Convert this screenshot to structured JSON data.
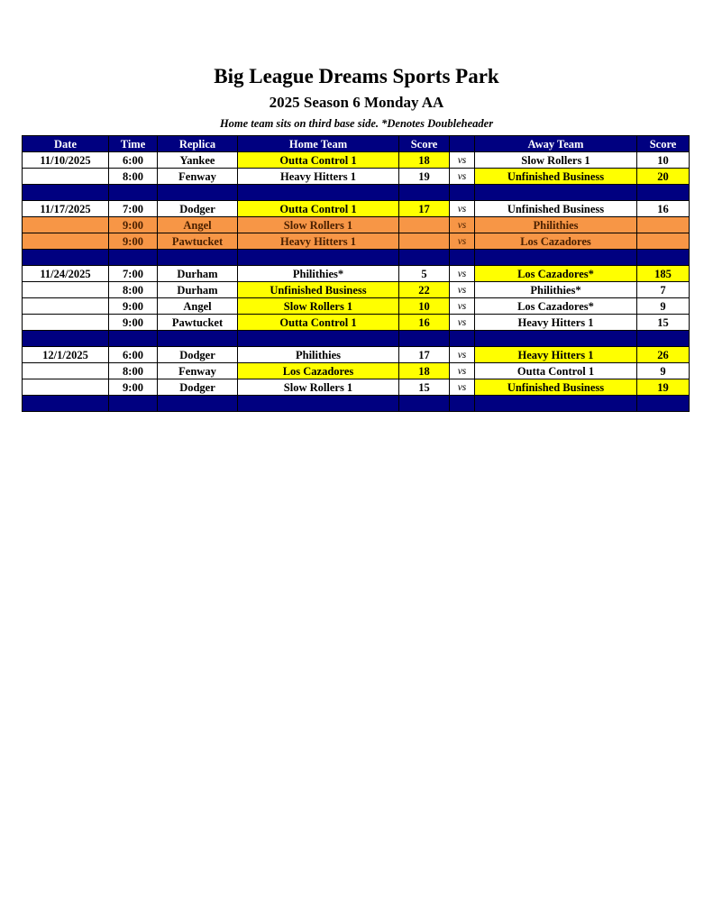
{
  "title": "Big League Dreams Sports Park",
  "subtitle": "2025 Season 6 Monday AA",
  "note": "Home team sits on third base side.  *Denotes Doubleheader",
  "colors": {
    "header": "#000080",
    "winner": "#ffff00",
    "cancelled": "#f79646"
  },
  "headers": [
    "Date",
    "Time",
    "Replica",
    "Home Team",
    "Score",
    "",
    "Away Team",
    "Score"
  ],
  "rows": [
    {
      "date": "11/10/2025",
      "time": "6:00",
      "replica": "Yankee",
      "home": "Outta Control 1",
      "home_score": "18",
      "vs": "vs",
      "away": "Slow Rollers 1",
      "away_score": "10",
      "highlight": "home"
    },
    {
      "date": "",
      "time": "8:00",
      "replica": "Fenway",
      "home": "Heavy Hitters 1",
      "home_score": "19",
      "vs": "vs",
      "away": "Unfinished Business",
      "away_score": "20",
      "highlight": "away"
    },
    {
      "separator": true
    },
    {
      "date": "11/17/2025",
      "time": "7:00",
      "replica": "Dodger",
      "home": "Outta Control 1",
      "home_score": "17",
      "vs": "vs",
      "away": "Unfinished Business",
      "away_score": "16",
      "highlight": "home"
    },
    {
      "date": "",
      "time": "9:00",
      "replica": "Angel",
      "home": "Slow Rollers 1",
      "home_score": "",
      "vs": "vs",
      "away": "Philithies",
      "away_score": "",
      "highlight": "cancel"
    },
    {
      "date": "",
      "time": "9:00",
      "replica": "Pawtucket",
      "home": "Heavy Hitters 1",
      "home_score": "",
      "vs": "vs",
      "away": "Los Cazadores",
      "away_score": "",
      "highlight": "cancel"
    },
    {
      "separator": true
    },
    {
      "date": "11/24/2025",
      "time": "7:00",
      "replica": "Durham",
      "home": "Philithies*",
      "home_score": "5",
      "vs": "vs",
      "away": "Los Cazadores*",
      "away_score": "185",
      "highlight": "away"
    },
    {
      "date": "",
      "time": "8:00",
      "replica": "Durham",
      "home": "Unfinished Business",
      "home_score": "22",
      "vs": "vs",
      "away": "Philithies*",
      "away_score": "7",
      "highlight": "home"
    },
    {
      "date": "",
      "time": "9:00",
      "replica": "Angel",
      "home": "Slow Rollers 1",
      "home_score": "10",
      "vs": "vs",
      "away": "Los Cazadores*",
      "away_score": "9",
      "highlight": "home"
    },
    {
      "date": "",
      "time": "9:00",
      "replica": "Pawtucket",
      "home": "Outta Control 1",
      "home_score": "16",
      "vs": "vs",
      "away": "Heavy Hitters 1",
      "away_score": "15",
      "highlight": "home"
    },
    {
      "separator": true
    },
    {
      "date": "12/1/2025",
      "time": "6:00",
      "replica": "Dodger",
      "home": "Philithies",
      "home_score": "17",
      "vs": "vs",
      "away": "Heavy Hitters 1",
      "away_score": "26",
      "highlight": "away"
    },
    {
      "date": "",
      "time": "8:00",
      "replica": "Fenway",
      "home": "Los Cazadores",
      "home_score": "18",
      "vs": "vs",
      "away": "Outta Control 1",
      "away_score": "9",
      "highlight": "home"
    },
    {
      "date": "",
      "time": "9:00",
      "replica": "Dodger",
      "home": "Slow Rollers 1",
      "home_score": "15",
      "vs": "vs",
      "away": "Unfinished Business",
      "away_score": "19",
      "highlight": "away"
    },
    {
      "separator": true
    }
  ]
}
